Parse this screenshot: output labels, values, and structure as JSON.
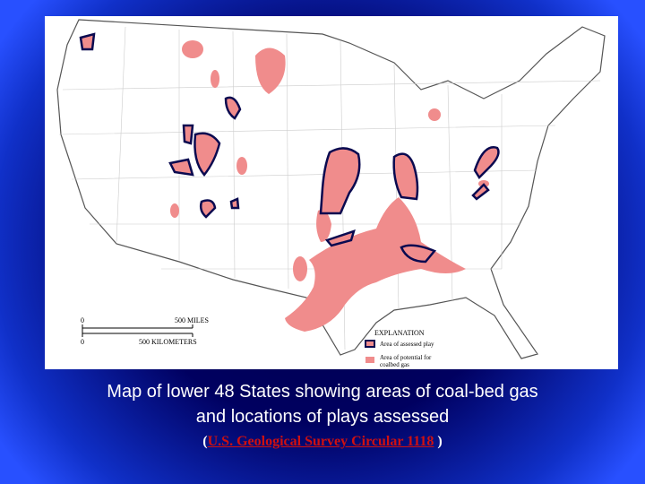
{
  "map": {
    "scale": {
      "miles_zero": "0",
      "miles": "500 MILES",
      "km_zero": "0",
      "km": "500 KILOMETERS"
    },
    "legend": {
      "title": "EXPLANATION",
      "play": "Area of assessed play",
      "potential_1": "Area of potential for",
      "potential_2": "coalbed gas"
    }
  },
  "caption": {
    "line_1": "Map of lower 48 States showing areas of coal-bed gas",
    "line_2": "and locations of plays assessed"
  },
  "citation": {
    "open": "(",
    "link": "U.S. Geological Survey Circular 1118",
    "close": " )"
  }
}
